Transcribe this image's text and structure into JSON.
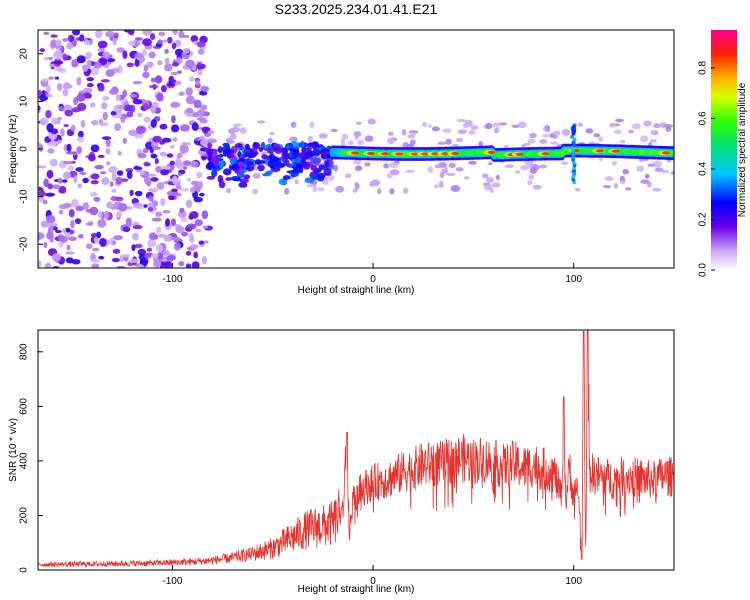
{
  "figure_title": "S233.2025.234.01.41.E21",
  "colors": {
    "snr_line": "#e8312d",
    "spectrogram_background": "#ffffff",
    "frame": "#000000"
  },
  "chart_data": [
    {
      "type": "heatmap",
      "title": "",
      "xlabel": "Height of straight line (km)",
      "ylabel": "Frequency (Hz)",
      "xlim": [
        -167,
        150
      ],
      "ylim": [
        -25,
        25
      ],
      "x_ticks": [
        -100,
        0,
        100
      ],
      "x_tick_labels": [
        "-100",
        "0",
        "100"
      ],
      "y_ticks": [
        -20,
        -10,
        0,
        10,
        20
      ],
      "y_tick_labels": [
        "-20",
        "-10",
        "0",
        "10",
        "20"
      ],
      "grid": false,
      "colorbar": {
        "label": "Normalized spectral amplitude",
        "range": [
          0,
          0.95
        ],
        "ticks": [
          0.0,
          0.2,
          0.4,
          0.6,
          0.8
        ],
        "tick_labels": [
          "0.0",
          "0.2",
          "0.4",
          "0.6",
          "0.8"
        ]
      },
      "features": [
        {
          "x_range": [
            -167,
            -82
          ],
          "f_range": [
            -25,
            25
          ],
          "amplitude": 0.1,
          "description_level": "scattered noise"
        },
        {
          "x_range": [
            -82,
            -20
          ],
          "f_range": [
            -8,
            3
          ],
          "amplitude": 0.25
        },
        {
          "x_range": [
            -20,
            150
          ],
          "f_center": [
            -0.5,
            -1.5
          ],
          "amplitude": 0.75
        },
        {
          "x": 100,
          "f_range": [
            -7,
            5
          ],
          "amplitude": 0.4
        }
      ]
    },
    {
      "type": "line",
      "title": "",
      "xlabel": "Height of straight line (km)",
      "ylabel": "SNR (10 * v/v)",
      "xlim": [
        -167,
        150
      ],
      "ylim": [
        0,
        880
      ],
      "x_ticks": [
        -100,
        0,
        100
      ],
      "x_tick_labels": [
        "-100",
        "0",
        "100"
      ],
      "y_ticks": [
        0,
        200,
        400,
        600,
        800
      ],
      "y_tick_labels": [
        "0",
        "200",
        "400",
        "600",
        "800"
      ],
      "grid": false,
      "series": [
        {
          "color": "#e8312d",
          "x": [
            -167,
            -140,
            -110,
            -90,
            -80,
            -70,
            -60,
            -50,
            -45,
            -40,
            -35,
            -30,
            -25,
            -20,
            -15,
            -13,
            -12,
            -10,
            -5,
            0,
            5,
            10,
            15,
            20,
            25,
            30,
            35,
            40,
            45,
            50,
            55,
            60,
            65,
            70,
            75,
            80,
            85,
            90,
            94,
            95,
            96,
            98,
            100,
            102,
            103,
            104,
            105,
            106,
            107,
            108,
            110,
            115,
            120,
            125,
            130,
            135,
            140,
            145,
            150
          ],
          "y": [
            20,
            22,
            25,
            30,
            35,
            45,
            60,
            80,
            100,
            120,
            140,
            155,
            160,
            170,
            220,
            500,
            120,
            260,
            300,
            320,
            330,
            340,
            360,
            370,
            385,
            390,
            390,
            405,
            410,
            400,
            405,
            395,
            380,
            390,
            375,
            385,
            370,
            360,
            270,
            630,
            250,
            380,
            260,
            320,
            180,
            40,
            870,
            60,
            880,
            360,
            350,
            340,
            330,
            345,
            340,
            335,
            330,
            345,
            340
          ]
        }
      ]
    }
  ]
}
